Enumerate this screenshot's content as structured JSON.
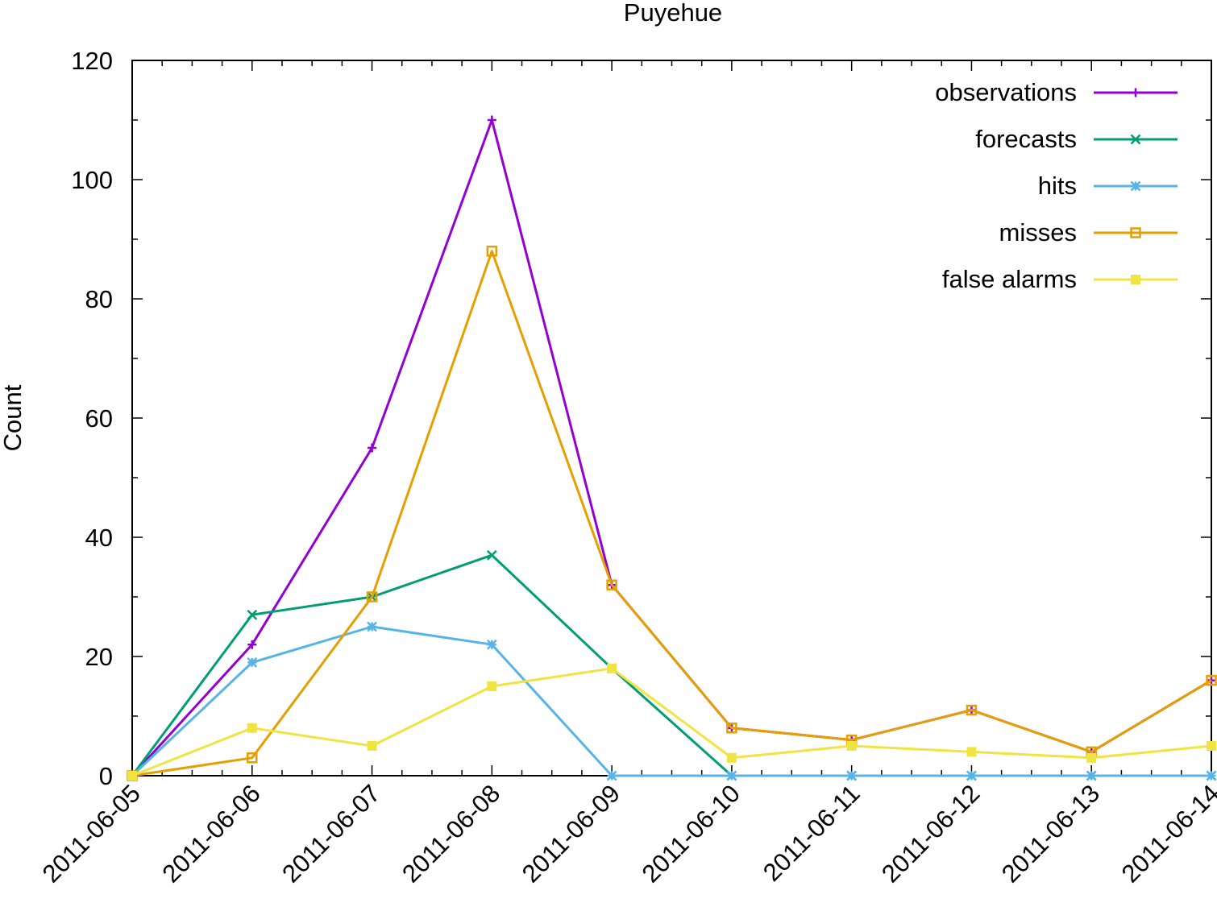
{
  "chart_data": {
    "type": "line",
    "title": "Puyehue",
    "xlabel": "",
    "ylabel": "Count",
    "x": [
      "2011-06-05",
      "2011-06-06",
      "2011-06-07",
      "2011-06-08",
      "2011-06-09",
      "2011-06-10",
      "2011-06-11",
      "2011-06-12",
      "2011-06-13",
      "2011-06-14"
    ],
    "ylim": [
      0,
      120
    ],
    "yticks": [
      0,
      20,
      40,
      60,
      80,
      100,
      120
    ],
    "grid": false,
    "legend_position": "top-right",
    "series": [
      {
        "name": "observations",
        "color": "#9400d3",
        "marker": "plus",
        "values": [
          0,
          22,
          55,
          110,
          32,
          8,
          6,
          11,
          4,
          16
        ]
      },
      {
        "name": "forecasts",
        "color": "#009e73",
        "marker": "cross",
        "values": [
          0,
          27,
          30,
          37,
          18,
          0,
          0,
          0,
          0,
          0
        ]
      },
      {
        "name": "hits",
        "color": "#56b4e9",
        "marker": "star",
        "values": [
          0,
          19,
          25,
          22,
          0,
          0,
          0,
          0,
          0,
          0
        ]
      },
      {
        "name": "misses",
        "color": "#e69f00",
        "marker": "open-square",
        "values": [
          0,
          3,
          30,
          88,
          32,
          8,
          6,
          11,
          4,
          16
        ]
      },
      {
        "name": "false alarms",
        "color": "#f0e442",
        "marker": "filled-square",
        "values": [
          0,
          8,
          5,
          15,
          18,
          3,
          5,
          4,
          3,
          5
        ]
      }
    ]
  }
}
